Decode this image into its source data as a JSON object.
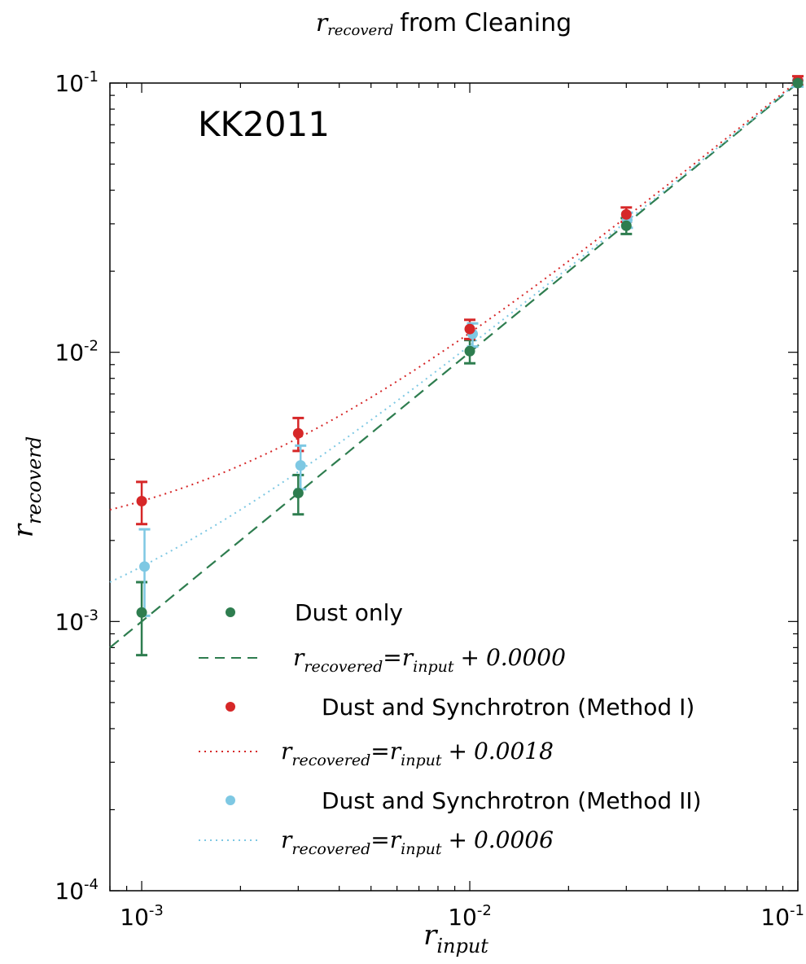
{
  "chart_data": {
    "type": "scatter",
    "title": {
      "var_main": "r",
      "var_sub": "recoverd",
      "text": "from Cleaning"
    },
    "xlabel": {
      "main": "r",
      "sub": "input"
    },
    "ylabel": {
      "main": "r",
      "sub": "recoverd"
    },
    "annotation": "KK2011",
    "x_scale": "log",
    "y_scale": "log",
    "xlim": [
      0.0008,
      0.1
    ],
    "ylim": [
      0.0001,
      0.1
    ],
    "x_ticks": [
      {
        "value": 0.001,
        "base": "10",
        "exp": "-3"
      },
      {
        "value": 0.01,
        "base": "10",
        "exp": "-2"
      },
      {
        "value": 0.1,
        "base": "10",
        "exp": "-1"
      }
    ],
    "y_ticks": [
      {
        "value": 0.0001,
        "base": "10",
        "exp": "-4"
      },
      {
        "value": 0.001,
        "base": "10",
        "exp": "-3"
      },
      {
        "value": 0.01,
        "base": "10",
        "exp": "-2"
      },
      {
        "value": 0.1,
        "base": "10",
        "exp": "-1"
      }
    ],
    "grid": false,
    "legend_position": "lower-right",
    "series": [
      {
        "name": "Dust only",
        "color": "#2e7d4f",
        "marker": "circle",
        "points": [
          {
            "x": 0.001,
            "y": 0.00108,
            "lo": 0.00075,
            "hi": 0.0014
          },
          {
            "x": 0.003,
            "y": 0.003,
            "lo": 0.0025,
            "hi": 0.0035
          },
          {
            "x": 0.01,
            "y": 0.0101,
            "lo": 0.0091,
            "hi": 0.0111
          },
          {
            "x": 0.03,
            "y": 0.0295,
            "lo": 0.0275,
            "hi": 0.0315
          },
          {
            "x": 0.1,
            "y": 0.1,
            "lo": 0.0975,
            "hi": 0.1025
          }
        ]
      },
      {
        "name": "Dust and Synchrotron (Method I)",
        "color": "#d62728",
        "marker": "circle",
        "points": [
          {
            "x": 0.001,
            "y": 0.0028,
            "lo": 0.0023,
            "hi": 0.0033
          },
          {
            "x": 0.003,
            "y": 0.005,
            "lo": 0.0043,
            "hi": 0.0057
          },
          {
            "x": 0.01,
            "y": 0.0122,
            "lo": 0.0112,
            "hi": 0.0132
          },
          {
            "x": 0.03,
            "y": 0.0325,
            "lo": 0.0305,
            "hi": 0.0345
          },
          {
            "x": 0.1,
            "y": 0.102,
            "lo": 0.098,
            "hi": 0.106
          }
        ]
      },
      {
        "name": "Dust and Synchrotron (Method II)",
        "color": "#7ec8e3",
        "marker": "circle",
        "points": [
          {
            "x": 0.00102,
            "y": 0.0016,
            "lo": 0.00105,
            "hi": 0.0022
          },
          {
            "x": 0.00305,
            "y": 0.0038,
            "lo": 0.0031,
            "hi": 0.0045
          },
          {
            "x": 0.0102,
            "y": 0.0117,
            "lo": 0.0105,
            "hi": 0.0128
          },
          {
            "x": 0.0302,
            "y": 0.031,
            "lo": 0.029,
            "hi": 0.033
          },
          {
            "x": 0.1,
            "y": 0.1,
            "lo": 0.097,
            "hi": 0.103
          }
        ]
      }
    ],
    "fit_lines": [
      {
        "offset": 0.0,
        "offset_text": "0.0000",
        "color": "#2e7d4f",
        "style": "dashed"
      },
      {
        "offset": 0.0018,
        "offset_text": "0.0018",
        "color": "#d62728",
        "style": "dotted"
      },
      {
        "offset": 0.0006,
        "offset_text": "0.0006",
        "color": "#7ec8e3",
        "style": "dotted"
      }
    ],
    "legend_equation": {
      "lhs_main": "r",
      "lhs_sub": "recovered",
      "eq": "=",
      "rhs_main": "r",
      "rhs_sub": "input",
      "plus": "+"
    }
  }
}
